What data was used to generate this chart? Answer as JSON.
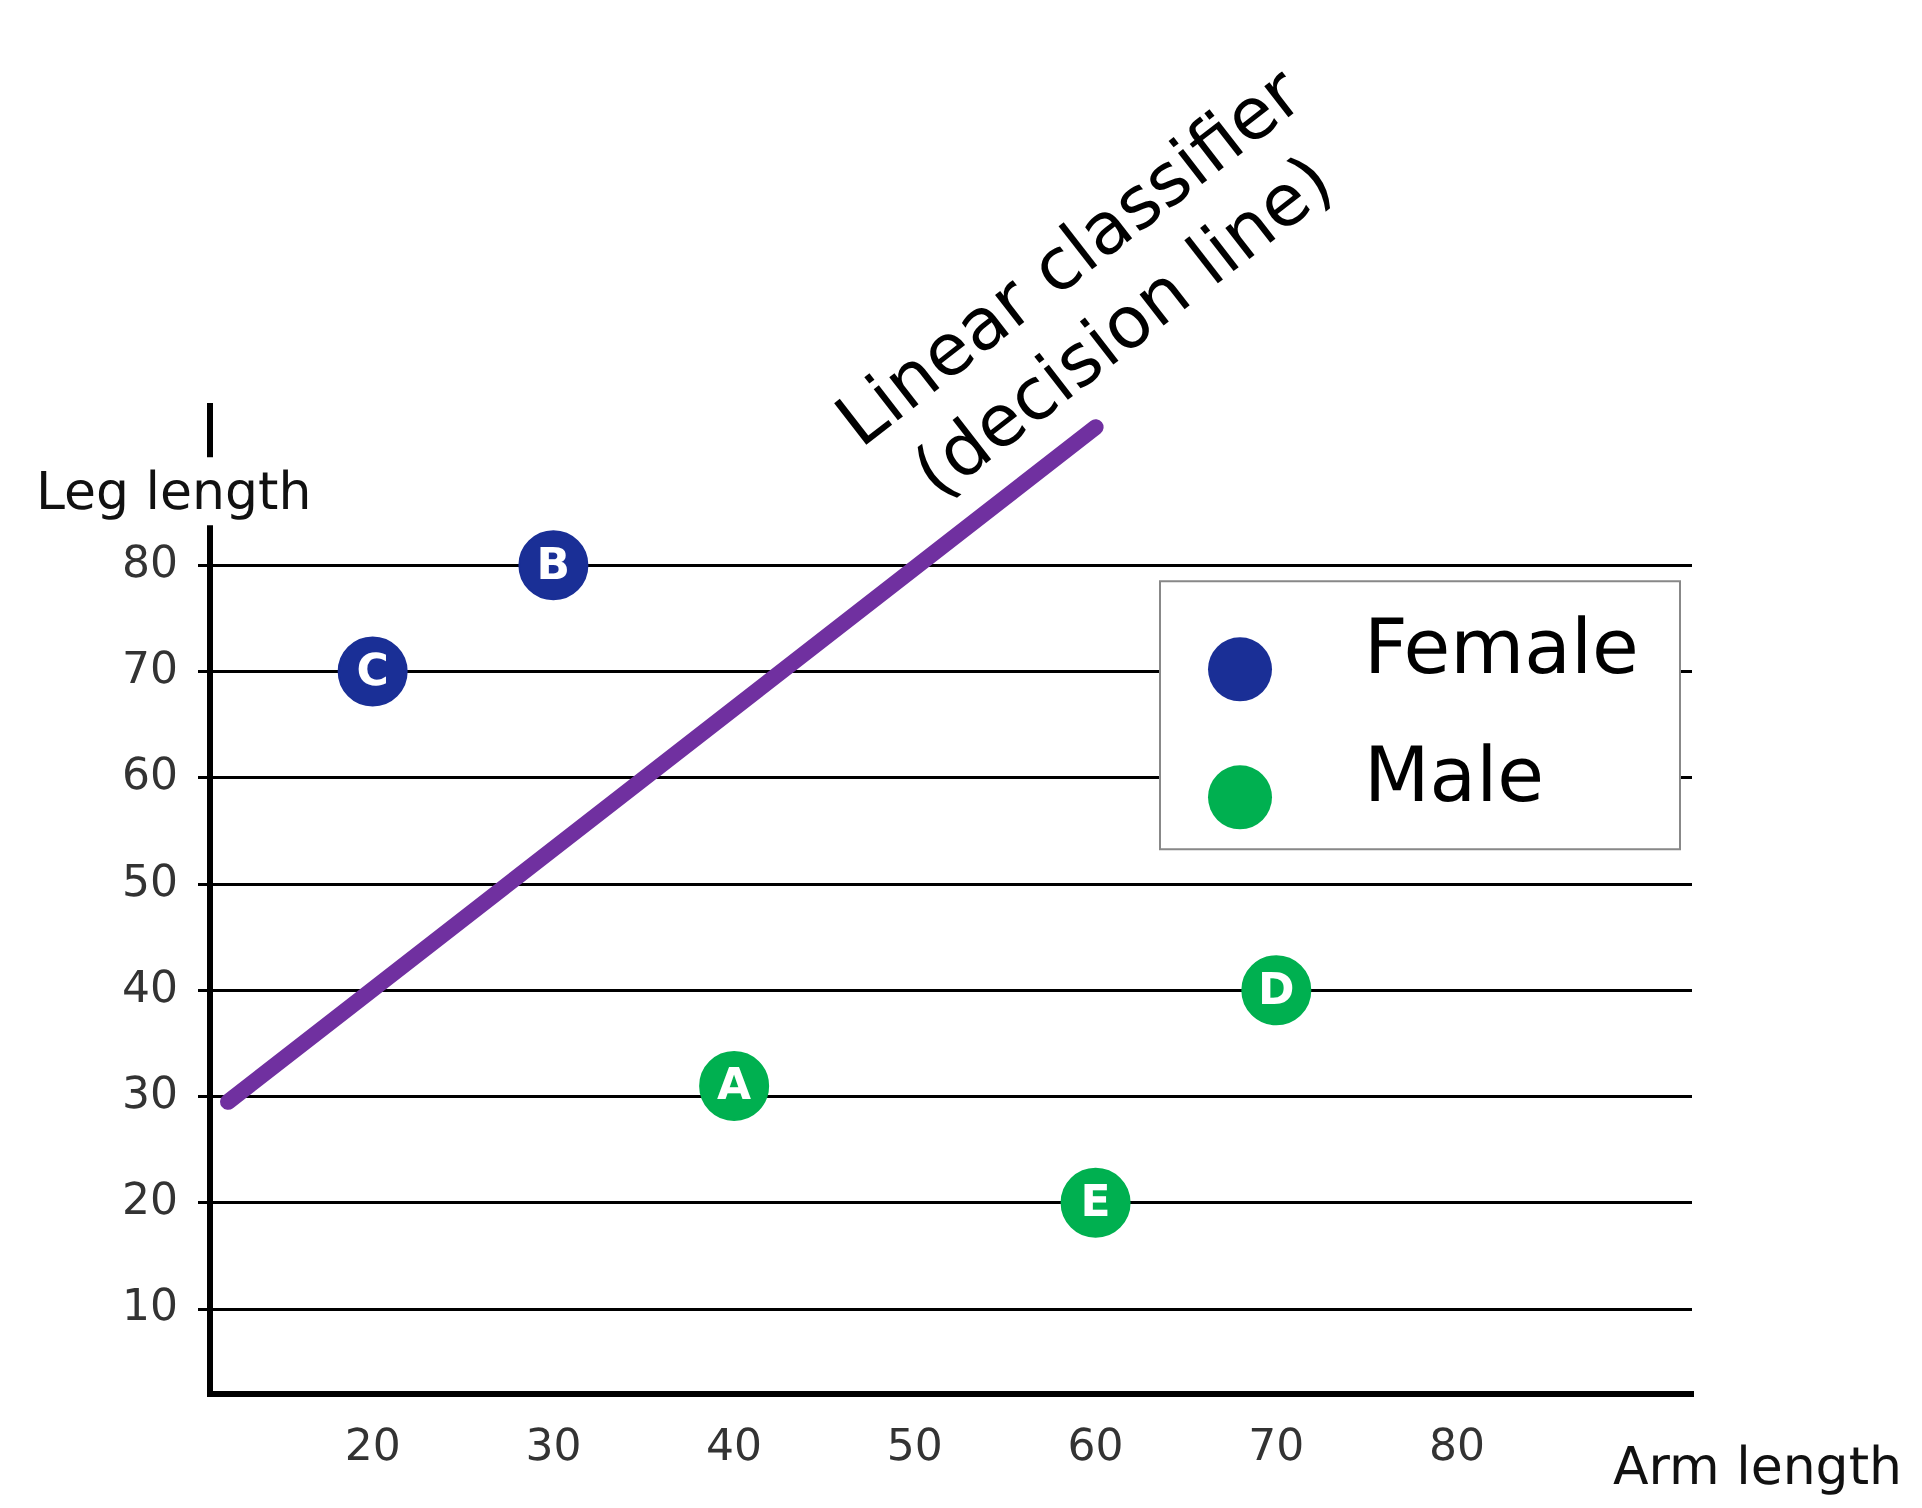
{
  "chart_data": {
    "type": "scatter",
    "xlabel": "Arm length",
    "ylabel": "Leg length",
    "xlim": [
      11,
      93
    ],
    "xticks": [
      20,
      30,
      40,
      50,
      60,
      70,
      80
    ],
    "ylim": [
      2,
      95
    ],
    "yticks": [
      10,
      20,
      30,
      40,
      50,
      60,
      70,
      80
    ],
    "grid": "y",
    "legend": "top right",
    "marker": "circle",
    "annotations": [
      "Linear classifier\n(decision line)"
    ],
    "series": [
      {
        "name": "Female",
        "color": "#1a2f96",
        "x": [
          30,
          20
        ],
        "values": [
          80,
          70
        ],
        "value_labels": [
          "B",
          "C"
        ]
      },
      {
        "name": "Male",
        "color": "#00b050",
        "x": [
          40,
          70,
          60
        ],
        "values": [
          31,
          40,
          20
        ],
        "value_labels": [
          "A",
          "D",
          "E"
        ]
      },
      {
        "type": "line",
        "marker": "none",
        "color": "#7030a0",
        "x": [
          12,
          60
        ],
        "values": [
          29.5,
          93
        ]
      }
    ]
  }
}
